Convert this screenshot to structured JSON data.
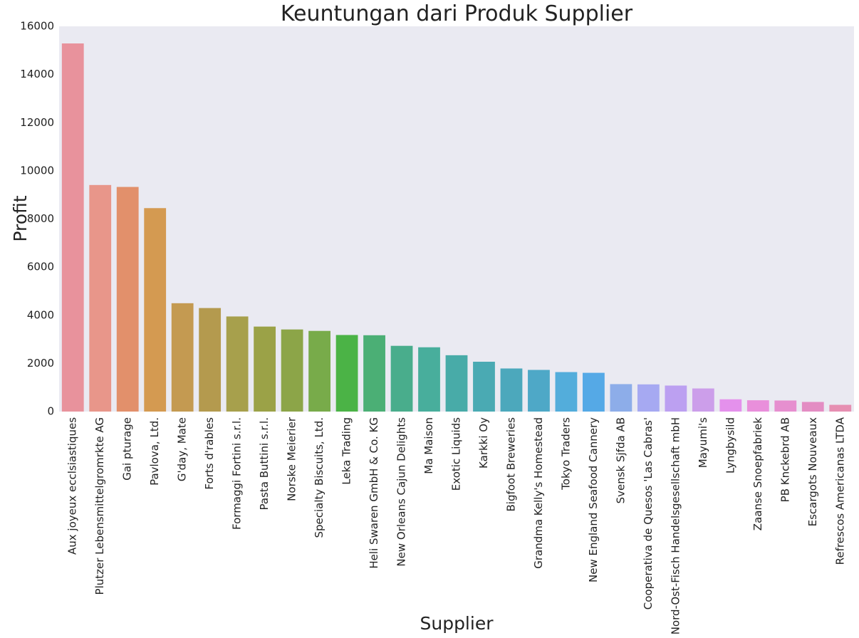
{
  "chart_data": {
    "type": "bar",
    "title": "Keuntungan dari Produk Supplier",
    "xlabel": "Supplier",
    "ylabel": "Profit",
    "ylim": [
      0,
      16000
    ],
    "yticks": [
      "0",
      "2000",
      "4000",
      "6000",
      "8000",
      "10000",
      "12000",
      "14000",
      "16000"
    ],
    "grid": false,
    "background": "#EAEAF2",
    "categories": [
      "Aux joyeux ecclsiastiques",
      "Plutzer Lebensmittelgromrkte AG",
      "Gai pturage",
      "Pavlova, Ltd.",
      "G'day, Mate",
      "Forts d'rables",
      "Formaggi Fortini s.r.l.",
      "Pasta Buttini s.r.l.",
      "Norske Meierier",
      "Specialty Biscuits, Ltd.",
      "Leka Trading",
      "Heli Swaren GmbH & Co. KG",
      "New Orleans Cajun Delights",
      "Ma Maison",
      "Exotic Liquids",
      "Karkki Oy",
      "Bigfoot Breweries",
      "Grandma Kelly's Homestead",
      "Tokyo Traders",
      "New England Seafood Cannery",
      "Svensk Sjfda AB",
      "Cooperativa de Quesos 'Las Cabras'",
      "Nord-Ost-Fisch Handelsgesellschaft mbH",
      "Mayumi's",
      "Lyngbysild",
      "Zaanse Snoepfabriek",
      "PB Knckebrd AB",
      "Escargots Nouveaux",
      "Refrescos Americanas LTDA"
    ],
    "values": [
      15290,
      9410,
      9330,
      8450,
      4500,
      4300,
      3950,
      3530,
      3410,
      3350,
      3180,
      3170,
      2730,
      2670,
      2340,
      2070,
      1790,
      1730,
      1640,
      1610,
      1140,
      1130,
      1080,
      960,
      510,
      470,
      460,
      400,
      280
    ],
    "colors": [
      "#E8929C",
      "#E8968A",
      "#E2906B",
      "#D49A51",
      "#C49A51",
      "#B49A4E",
      "#A7A04C",
      "#9BA247",
      "#8CA548",
      "#78AB4A",
      "#4BB346",
      "#4BAF75",
      "#49AD8C",
      "#48AE9C",
      "#48ABA8",
      "#4AAAB3",
      "#4CA8BC",
      "#4EA8C7",
      "#53ADDB",
      "#55A9E6",
      "#8DADE9",
      "#A6A9F2",
      "#BCA0F1",
      "#CC9EEA",
      "#E491EC",
      "#E98FDB",
      "#E68FCF",
      "#E38DC3",
      "#E68FB2"
    ]
  }
}
